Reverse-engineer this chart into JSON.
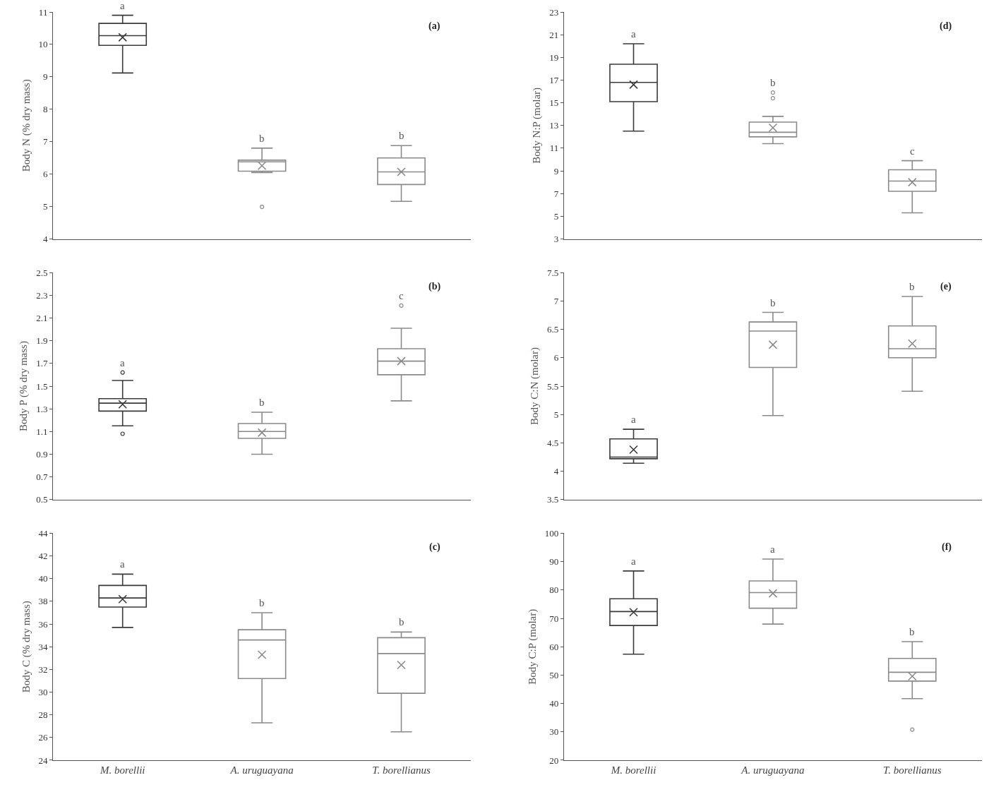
{
  "chart_data": [
    {
      "type": "box",
      "ylabel": "Body N (% dry mass)",
      "categories": [
        null,
        null,
        null
      ],
      "tick_labels": "y",
      "ylim": [
        4,
        11
      ],
      "yticks": [
        4,
        5,
        6,
        7,
        8,
        9,
        10,
        11
      ],
      "colors": [
        "#3a3a3a",
        "#8a8a8a",
        "#8a8a8a"
      ],
      "boxes": [
        {
          "low": 9.12,
          "q1": 9.97,
          "median": 10.27,
          "q3": 10.65,
          "high": 10.9,
          "mean": 10.22
        },
        {
          "low": 6.05,
          "q1": 6.09,
          "median": 6.38,
          "q3": 6.43,
          "high": 6.8,
          "mean": 6.26,
          "outliers": [
            4.99
          ]
        },
        {
          "low": 5.16,
          "q1": 5.68,
          "median": 6.07,
          "q3": 6.5,
          "high": 6.88,
          "mean": 6.07
        }
      ],
      "annotations": [
        "(a)",
        "a",
        "b",
        "b"
      ]
    },
    {
      "type": "box",
      "ylabel": "Body P (% dry mass)",
      "categories": [
        null,
        null,
        null
      ],
      "tick_labels": "y",
      "ylim": [
        0.5,
        2.5
      ],
      "yticks": [
        0.5,
        0.7,
        0.9,
        1.1,
        1.3,
        1.5,
        1.7,
        1.9,
        2.1,
        2.3,
        2.5
      ],
      "colors": [
        "#3a3a3a",
        "#8a8a8a",
        "#8a8a8a"
      ],
      "boxes": [
        {
          "low": 1.15,
          "q1": 1.28,
          "median": 1.35,
          "q3": 1.39,
          "high": 1.55,
          "mean": 1.34,
          "outliers": [
            1.62,
            1.08
          ]
        },
        {
          "low": 0.9,
          "q1": 1.04,
          "median": 1.1,
          "q3": 1.17,
          "high": 1.27,
          "mean": 1.09
        },
        {
          "low": 1.37,
          "q1": 1.6,
          "median": 1.72,
          "q3": 1.83,
          "high": 2.01,
          "mean": 1.72,
          "outliers": [
            2.21
          ]
        }
      ],
      "annotations": [
        "(b)",
        "a",
        "b",
        "c"
      ]
    },
    {
      "type": "box",
      "ylabel": "Body C (% dry mass)",
      "categories": [
        "M. borellii",
        "A. uruguayana",
        "T. borellianus"
      ],
      "ylim": [
        24,
        44
      ],
      "yticks": [
        24,
        26,
        28,
        30,
        32,
        34,
        36,
        38,
        40,
        42,
        44
      ],
      "colors": [
        "#3a3a3a",
        "#8a8a8a",
        "#8a8a8a"
      ],
      "boxes": [
        {
          "low": 35.7,
          "q1": 37.5,
          "median": 38.3,
          "q3": 39.4,
          "high": 40.4,
          "mean": 38.2
        },
        {
          "low": 27.3,
          "q1": 31.2,
          "median": 34.6,
          "q3": 35.5,
          "high": 37.0,
          "mean": 33.3
        },
        {
          "low": 26.5,
          "q1": 29.9,
          "median": 33.4,
          "q3": 34.8,
          "high": 35.3,
          "mean": 32.4
        }
      ],
      "annotations": [
        "(c)",
        "a",
        "b",
        "b"
      ]
    },
    {
      "type": "box",
      "ylabel": "Body N:P (molar)",
      "categories": [
        null,
        null,
        null
      ],
      "tick_labels": "y",
      "ylim": [
        3,
        23
      ],
      "yticks": [
        3,
        5,
        7,
        9,
        11,
        13,
        15,
        17,
        19,
        21,
        23
      ],
      "colors": [
        "#3a3a3a",
        "#8a8a8a",
        "#8a8a8a"
      ],
      "boxes": [
        {
          "low": 12.5,
          "q1": 15.1,
          "median": 16.8,
          "q3": 18.4,
          "high": 20.2,
          "mean": 16.6
        },
        {
          "low": 11.4,
          "q1": 12.0,
          "median": 12.4,
          "q3": 13.3,
          "high": 13.8,
          "mean": 12.8,
          "outliers": [
            15.9,
            15.4
          ]
        },
        {
          "low": 5.3,
          "q1": 7.2,
          "median": 8.1,
          "q3": 9.1,
          "high": 9.9,
          "mean": 8.0
        }
      ],
      "annotations": [
        "(d)",
        "a",
        "b",
        "c"
      ]
    },
    {
      "type": "box",
      "ylabel": "Body C:N (molar)",
      "categories": [
        null,
        null,
        null
      ],
      "tick_labels": "y",
      "ylim": [
        3.5,
        7.5
      ],
      "yticks": [
        3.5,
        4,
        4.5,
        5,
        5.5,
        6,
        6.5,
        7,
        7.5
      ],
      "colors": [
        "#3a3a3a",
        "#8a8a8a",
        "#8a8a8a"
      ],
      "boxes": [
        {
          "low": 4.14,
          "q1": 4.22,
          "median": 4.25,
          "q3": 4.57,
          "high": 4.74,
          "mean": 4.38
        },
        {
          "low": 4.98,
          "q1": 5.83,
          "median": 6.47,
          "q3": 6.63,
          "high": 6.8,
          "mean": 6.23
        },
        {
          "low": 5.41,
          "q1": 6.0,
          "median": 6.16,
          "q3": 6.56,
          "high": 7.08,
          "mean": 6.25
        }
      ],
      "annotations": [
        "(e)",
        "a",
        "b",
        "b"
      ]
    },
    {
      "type": "box",
      "ylabel": "Body C:P (molar)",
      "categories": [
        "M. borellii",
        "A. uruguayana",
        "T. borellianus"
      ],
      "ylim": [
        20,
        100
      ],
      "yticks": [
        20,
        30,
        40,
        50,
        60,
        70,
        80,
        90,
        100
      ],
      "colors": [
        "#3a3a3a",
        "#8a8a8a",
        "#8a8a8a"
      ],
      "boxes": [
        {
          "low": 57.4,
          "q1": 67.5,
          "median": 72.4,
          "q3": 76.9,
          "high": 86.7,
          "mean": 72.2
        },
        {
          "low": 68.0,
          "q1": 73.6,
          "median": 79.1,
          "q3": 83.2,
          "high": 90.9,
          "mean": 78.8
        },
        {
          "low": 41.7,
          "q1": 47.9,
          "median": 51.0,
          "q3": 55.9,
          "high": 61.8,
          "mean": 49.6,
          "outliers": [
            30.8
          ]
        }
      ],
      "annotations": [
        "(f)",
        "a",
        "a",
        "b"
      ]
    }
  ]
}
